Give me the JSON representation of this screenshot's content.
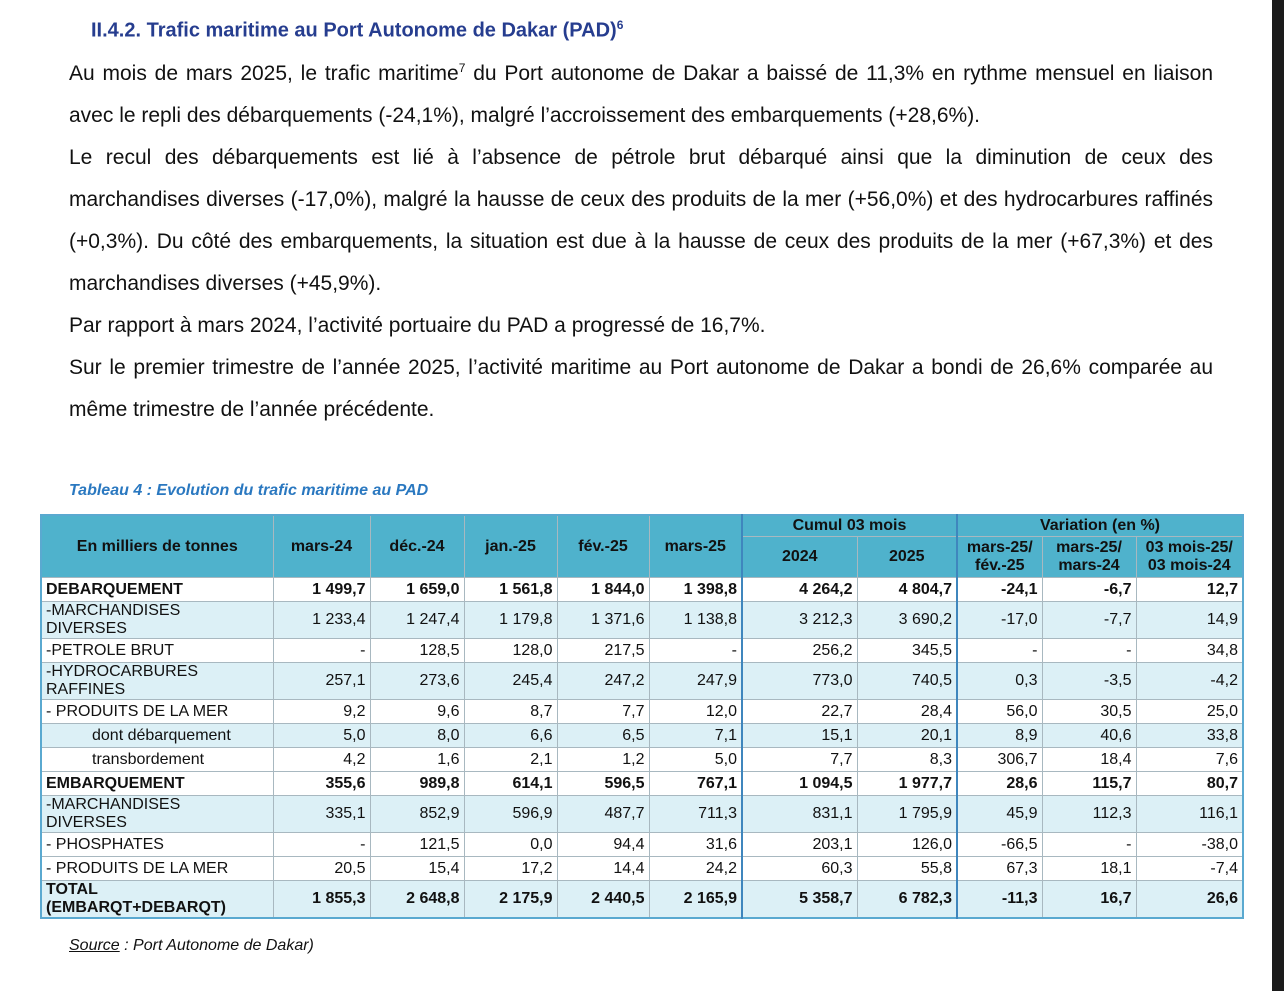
{
  "heading": {
    "text": "II.4.2. Trafic maritime au Port Autonome de Dakar (PAD)",
    "note": "6"
  },
  "paragraphs": [
    {
      "text": "Au mois de mars 2025, le trafic maritime",
      "note": "7",
      "rest": " du Port autonome de Dakar a baissé de 11,3% en rythme mensuel en liaison avec le repli des débarquements (-24,1%), malgré l’accroissement des embarquements (+28,6%)."
    },
    {
      "text": "Le recul des débarquements est lié à l’absence de pétrole brut débarqué ainsi que la diminution de ceux des marchandises diverses (-17,0%), malgré la hausse de ceux des produits de la mer (+56,0%) et des hydrocarbures raffinés (+0,3%). Du côté des embarquements, la situation est due à la hausse de ceux des produits de la mer (+67,3%) et des marchandises diverses (+45,9%)."
    },
    {
      "text": "Par rapport à mars 2024, l’activité portuaire du PAD a progressé de 16,7%."
    },
    {
      "text": "Sur le premier trimestre de l’année 2025, l’activité maritime au Port autonome de Dakar a bondi de 26,6% comparée au même trimestre de l’année précédente."
    }
  ],
  "table_caption": "Tableau 4 : Evolution du trafic maritime au PAD",
  "table": {
    "unit": "En milliers de tonnes",
    "months": [
      "mars-24",
      "déc.-24",
      "jan.-25",
      "fév.-25",
      "mars-25"
    ],
    "cumul": {
      "title": "Cumul 03 mois",
      "years": [
        "2024",
        "2025"
      ]
    },
    "variation": {
      "title": "Variation (en %)",
      "columns": [
        [
          "mars-25/",
          "fév.-25"
        ],
        [
          "mars-25/",
          "mars-24"
        ],
        [
          "03 mois-25/",
          "03 mois-24"
        ]
      ]
    },
    "rows": [
      {
        "label": [
          "DEBARQUEMENT"
        ],
        "values": [
          "1 499,7",
          "1 659,0",
          "1 561,8",
          "1 844,0",
          "1 398,8",
          "4 264,2",
          "4 804,7",
          "-24,1",
          "-6,7",
          "12,7"
        ]
      },
      {
        "label": [
          "-MARCHANDISES",
          "DIVERSES"
        ],
        "values": [
          "1 233,4",
          "1 247,4",
          "1 179,8",
          "1 371,6",
          "1 138,8",
          "3 212,3",
          "3 690,2",
          "-17,0",
          "-7,7",
          "14,9"
        ]
      },
      {
        "label": [
          "-PETROLE BRUT"
        ],
        "values": [
          "-",
          "128,5",
          "128,0",
          "217,5",
          "-",
          "256,2",
          "345,5",
          "-",
          "-",
          "34,8"
        ]
      },
      {
        "label": [
          "-HYDROCARBURES",
          "RAFFINES"
        ],
        "values": [
          "257,1",
          "273,6",
          "245,4",
          "247,2",
          "247,9",
          "773,0",
          "740,5",
          "0,3",
          "-3,5",
          "-4,2"
        ]
      },
      {
        "label": [
          "- PRODUITS DE LA MER"
        ],
        "values": [
          "9,2",
          "9,6",
          "8,7",
          "7,7",
          "12,0",
          "22,7",
          "28,4",
          "56,0",
          "30,5",
          "25,0"
        ]
      },
      {
        "label": [
          "dont débarquement"
        ],
        "values": [
          "5,0",
          "8,0",
          "6,6",
          "6,5",
          "7,1",
          "15,1",
          "20,1",
          "8,9",
          "40,6",
          "33,8"
        ]
      },
      {
        "label": [
          "transbordement"
        ],
        "values": [
          "4,2",
          "1,6",
          "2,1",
          "1,2",
          "5,0",
          "7,7",
          "8,3",
          "306,7",
          "18,4",
          "7,6"
        ]
      },
      {
        "label": [
          "EMBARQUEMENT"
        ],
        "values": [
          "355,6",
          "989,8",
          "614,1",
          "596,5",
          "767,1",
          "1 094,5",
          "1 977,7",
          "28,6",
          "115,7",
          "80,7"
        ]
      },
      {
        "label": [
          "-MARCHANDISES",
          "DIVERSES"
        ],
        "values": [
          "335,1",
          "852,9",
          "596,9",
          "487,7",
          "711,3",
          "831,1",
          "1 795,9",
          "45,9",
          "112,3",
          "116,1"
        ]
      },
      {
        "label": [
          "- PHOSPHATES"
        ],
        "values": [
          "-",
          "121,5",
          "0,0",
          "94,4",
          "31,6",
          "203,1",
          "126,0",
          "-66,5",
          "-",
          "-38,0"
        ]
      },
      {
        "label": [
          "- PRODUITS DE LA MER"
        ],
        "values": [
          "20,5",
          "15,4",
          "17,2",
          "14,4",
          "24,2",
          "60,3",
          "55,8",
          "67,3",
          "18,1",
          "-7,4"
        ]
      },
      {
        "label": [
          "TOTAL",
          "(EMBARQT+DEBARQT)"
        ],
        "values": [
          "1 855,3",
          "2 648,8",
          "2 175,9",
          "2 440,5",
          "2 165,9",
          "5 358,7",
          "6 782,3",
          "-11,3",
          "16,7",
          "26,6"
        ]
      }
    ]
  },
  "source": {
    "label": "Source",
    "text": " : Port Autonome de Dakar)"
  }
}
